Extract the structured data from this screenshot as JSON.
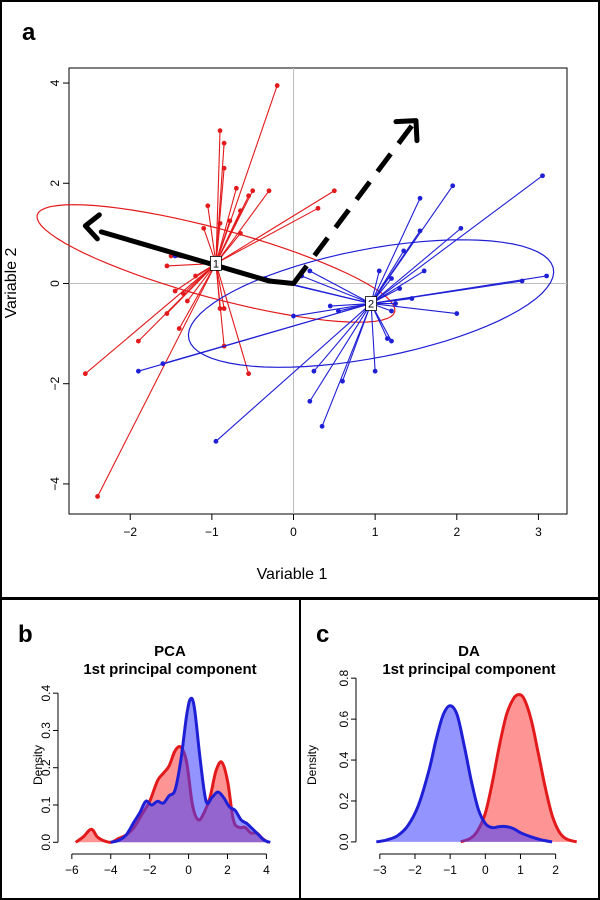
{
  "colors": {
    "group1": "#e31a1c",
    "group2": "#1f1fd6",
    "fill1": "rgba(255,60,60,0.55)",
    "fill2": "rgba(60,60,255,0.55)",
    "axis": "#000000",
    "refline": "#bdbdbd"
  },
  "panels": {
    "a": {
      "label": "a"
    },
    "b": {
      "label": "b"
    },
    "c": {
      "label": "c"
    }
  },
  "chart_data": [
    {
      "type": "scatter",
      "panel": "a",
      "title": "",
      "xlabel": "Variable 1",
      "ylabel": "Variable 2",
      "xlim": [
        -2.75,
        3.35
      ],
      "ylim": [
        -4.6,
        4.3
      ],
      "xticks": [
        -2,
        -1,
        0,
        1,
        2,
        3
      ],
      "yticks": [
        -4,
        -2,
        0,
        2,
        4
      ],
      "xtick_labels": [
        "−2",
        "−1",
        "0",
        "1",
        "2",
        "3"
      ],
      "ytick_labels": [
        "−4",
        "−2",
        "0",
        "2",
        "4"
      ],
      "series": [
        {
          "centroid_label": "1",
          "centroid": [
            -0.95,
            0.4
          ],
          "ellipse": {
            "cx": -0.95,
            "cy": 0.4,
            "rx_deg_axes": [
              0.65,
              2.4
            ],
            "angle": 65
          },
          "points": [
            [
              -0.2,
              3.95
            ],
            [
              -0.9,
              3.05
            ],
            [
              -0.85,
              2.3
            ],
            [
              -0.85,
              2.8
            ],
            [
              -0.7,
              1.9
            ],
            [
              -0.55,
              1.75
            ],
            [
              -0.5,
              1.85
            ],
            [
              -0.3,
              1.85
            ],
            [
              -0.65,
              1.45
            ],
            [
              -0.78,
              1.25
            ],
            [
              -0.65,
              1.0
            ],
            [
              -1.05,
              1.55
            ],
            [
              -1.1,
              1.1
            ],
            [
              0.5,
              1.85
            ],
            [
              0.3,
              1.5
            ],
            [
              -1.5,
              0.55
            ],
            [
              -1.55,
              0.35
            ],
            [
              -1.2,
              0.15
            ],
            [
              -1.35,
              -0.2
            ],
            [
              -1.3,
              -0.35
            ],
            [
              -1.45,
              -0.15
            ],
            [
              -1.55,
              -0.6
            ],
            [
              -1.4,
              -0.9
            ],
            [
              -1.9,
              -1.15
            ],
            [
              -2.55,
              -1.8
            ],
            [
              -2.4,
              -4.25
            ],
            [
              -0.85,
              -1.25
            ],
            [
              -0.55,
              -1.8
            ],
            [
              -0.9,
              -0.5
            ],
            [
              -0.85,
              -0.5
            ],
            [
              -0.9,
              1.2
            ]
          ]
        },
        {
          "centroid_label": "2",
          "centroid": [
            0.95,
            -0.4
          ],
          "ellipse": {
            "cx": 0.95,
            "cy": -0.4,
            "rx_deg_axes": [
              2.35,
              1.05
            ],
            "angle": 20
          },
          "points": [
            [
              3.05,
              2.15
            ],
            [
              1.95,
              1.95
            ],
            [
              1.55,
              1.7
            ],
            [
              1.55,
              1.05
            ],
            [
              2.05,
              1.1
            ],
            [
              1.35,
              0.65
            ],
            [
              1.2,
              0.1
            ],
            [
              1.05,
              0.25
            ],
            [
              1.3,
              -0.1
            ],
            [
              1.6,
              0.25
            ],
            [
              3.1,
              0.15
            ],
            [
              2.8,
              0.05
            ],
            [
              2.0,
              -0.6
            ],
            [
              1.45,
              -0.3
            ],
            [
              1.25,
              -0.4
            ],
            [
              1.2,
              -0.55
            ],
            [
              1.15,
              -1.1
            ],
            [
              1.2,
              -1.15
            ],
            [
              1.0,
              -1.75
            ],
            [
              0.6,
              -1.95
            ],
            [
              0.25,
              -1.75
            ],
            [
              0.35,
              -2.85
            ],
            [
              0.2,
              -2.35
            ],
            [
              -0.95,
              -3.15
            ],
            [
              -1.9,
              -1.75
            ],
            [
              -1.6,
              -1.6
            ],
            [
              0.0,
              -0.65
            ],
            [
              0.55,
              -0.55
            ],
            [
              0.2,
              0.25
            ],
            [
              0.1,
              0.15
            ],
            [
              -1.45,
              0.55
            ],
            [
              -0.35,
              0.1
            ],
            [
              0.45,
              -0.45
            ]
          ]
        }
      ]
    },
    {
      "type": "area",
      "panel": "b",
      "title": "PCA\n1st principal component",
      "title_lines": [
        "PCA",
        "1st principal component"
      ],
      "xlabel": "",
      "ylabel": "Density",
      "xlim": [
        -6.3,
        4.8
      ],
      "ylim": [
        -0.01,
        0.43
      ],
      "xticks": [
        -6,
        -4,
        -2,
        0,
        2,
        4
      ],
      "yticks": [
        0.0,
        0.1,
        0.2,
        0.3,
        0.4
      ],
      "xtick_labels": [
        "−6",
        "−4",
        "−2",
        "0",
        "2",
        "4"
      ],
      "ytick_labels": [
        "0.0",
        "0.1",
        "0.2",
        "0.3",
        "0.4"
      ],
      "series": [
        {
          "color_key": "group1",
          "x": [
            -5.8,
            -5.4,
            -5.0,
            -4.7,
            -4.4,
            -4.0,
            -3.6,
            -3.2,
            -2.8,
            -2.4,
            -2.0,
            -1.6,
            -1.3,
            -1.0,
            -0.7,
            -0.4,
            -0.1,
            0.2,
            0.5,
            0.8,
            1.1,
            1.4,
            1.7,
            2.0,
            2.3,
            2.6,
            2.9,
            3.2,
            3.5,
            3.8,
            4.1
          ],
          "y": [
            0.0,
            0.015,
            0.035,
            0.015,
            0.005,
            0.0,
            0.01,
            0.02,
            0.04,
            0.075,
            0.11,
            0.165,
            0.185,
            0.205,
            0.245,
            0.255,
            0.215,
            0.1,
            0.06,
            0.08,
            0.12,
            0.19,
            0.215,
            0.165,
            0.06,
            0.04,
            0.04,
            0.025,
            0.025,
            0.01,
            0.0
          ]
        },
        {
          "color_key": "group2",
          "x": [
            -4.0,
            -3.6,
            -3.2,
            -2.8,
            -2.5,
            -2.2,
            -1.9,
            -1.6,
            -1.3,
            -1.0,
            -0.7,
            -0.4,
            -0.1,
            0.1,
            0.3,
            0.6,
            0.9,
            1.2,
            1.5,
            1.8,
            2.1,
            2.4,
            2.7,
            3.0,
            3.3,
            3.6,
            3.9,
            4.2
          ],
          "y": [
            0.0,
            0.005,
            0.02,
            0.055,
            0.08,
            0.11,
            0.1,
            0.11,
            0.105,
            0.125,
            0.14,
            0.22,
            0.34,
            0.385,
            0.36,
            0.22,
            0.11,
            0.12,
            0.135,
            0.12,
            0.095,
            0.085,
            0.06,
            0.05,
            0.035,
            0.02,
            0.005,
            0.0
          ]
        }
      ]
    },
    {
      "type": "area",
      "panel": "c",
      "title": "DA\n1st principal component",
      "title_lines": [
        "DA",
        "1st principal component"
      ],
      "xlabel": "",
      "ylabel": "Density",
      "xlim": [
        -3.45,
        2.75
      ],
      "ylim": [
        -0.02,
        0.84
      ],
      "xticks": [
        -3,
        -2,
        -1,
        0,
        1,
        2
      ],
      "yticks": [
        0.0,
        0.2,
        0.4,
        0.6,
        0.8
      ],
      "xtick_labels": [
        "−3",
        "−2",
        "−1",
        "0",
        "1",
        "2"
      ],
      "ytick_labels": [
        "0.0",
        "0.2",
        "0.4",
        "0.6",
        "0.8"
      ],
      "series": [
        {
          "color_key": "group1",
          "x": [
            -0.7,
            -0.4,
            -0.2,
            0.0,
            0.2,
            0.4,
            0.6,
            0.8,
            0.95,
            1.1,
            1.3,
            1.5,
            1.7,
            1.9,
            2.1,
            2.3,
            2.6
          ],
          "y": [
            0.0,
            0.02,
            0.06,
            0.14,
            0.29,
            0.47,
            0.62,
            0.7,
            0.72,
            0.7,
            0.6,
            0.44,
            0.27,
            0.13,
            0.05,
            0.015,
            0.0
          ]
        },
        {
          "color_key": "group2",
          "x": [
            -3.1,
            -2.8,
            -2.5,
            -2.2,
            -1.9,
            -1.6,
            -1.4,
            -1.2,
            -1.0,
            -0.8,
            -0.6,
            -0.4,
            -0.2,
            0.0,
            0.2,
            0.4,
            0.6,
            0.8,
            1.0,
            1.3,
            1.6,
            1.9
          ],
          "y": [
            0.0,
            0.01,
            0.03,
            0.08,
            0.18,
            0.35,
            0.5,
            0.62,
            0.665,
            0.62,
            0.47,
            0.3,
            0.16,
            0.09,
            0.07,
            0.075,
            0.075,
            0.065,
            0.045,
            0.025,
            0.01,
            0.0
          ]
        }
      ]
    }
  ]
}
